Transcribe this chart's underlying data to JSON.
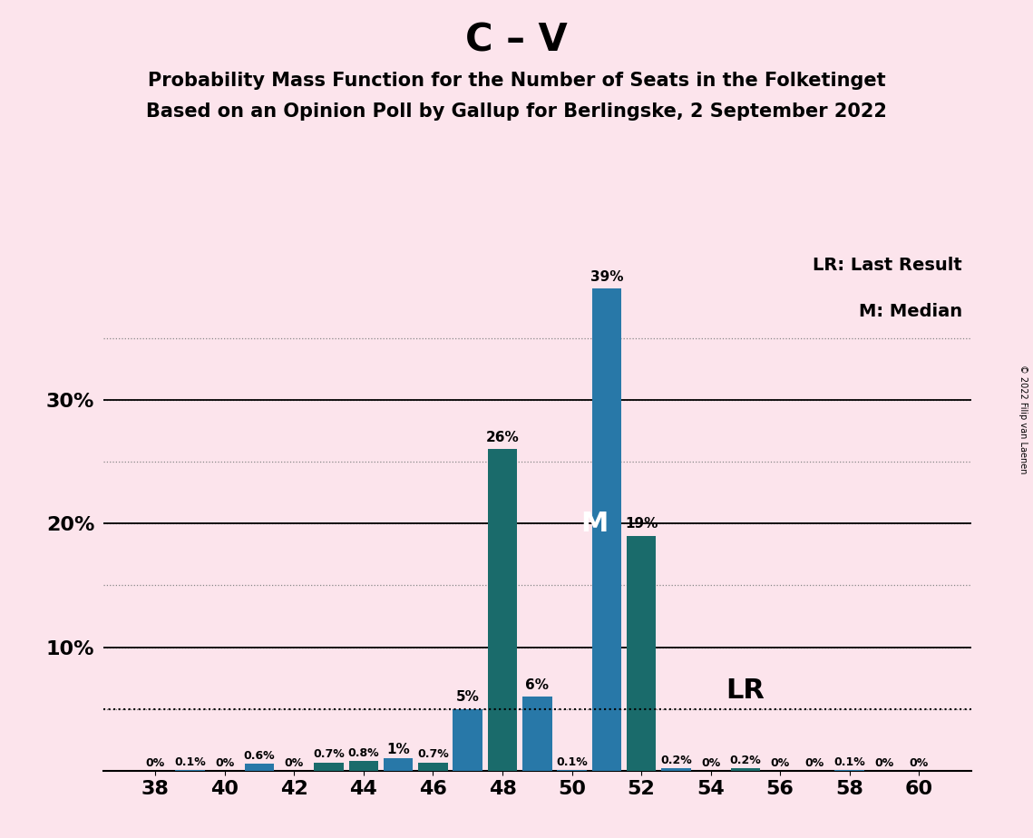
{
  "title": "C – V",
  "subtitle1": "Probability Mass Function for the Number of Seats in the Folketinget",
  "subtitle2": "Based on an Opinion Poll by Gallup for Berlingske, 2 September 2022",
  "copyright": "© 2022 Filip van Laenen",
  "lr_label": "LR: Last Result",
  "median_label": "M: Median",
  "background_color": "#fce4ec",
  "seats": [
    38,
    39,
    40,
    41,
    42,
    43,
    44,
    45,
    46,
    47,
    48,
    49,
    50,
    51,
    52,
    53,
    54,
    55,
    56,
    57,
    58,
    59,
    60
  ],
  "values": [
    0.0,
    0.1,
    0.0,
    0.6,
    0.0,
    0.7,
    0.8,
    1.0,
    0.7,
    5.0,
    26.0,
    6.0,
    0.1,
    39.0,
    19.0,
    0.2,
    0.0,
    0.2,
    0.0,
    0.0,
    0.1,
    0.0,
    0.0
  ],
  "colors": [
    "#2878a8",
    "#2878a8",
    "#2878a8",
    "#2878a8",
    "#2878a8",
    "#1a6b6b",
    "#1a6b6b",
    "#2878a8",
    "#1a6b6b",
    "#2878a8",
    "#1a6b6b",
    "#2878a8",
    "#2878a8",
    "#2878a8",
    "#1a6b6b",
    "#2878a8",
    "#2878a8",
    "#1a6b6b",
    "#2878a8",
    "#2878a8",
    "#2878a8",
    "#2878a8",
    "#2878a8"
  ],
  "last_result_seat": 51,
  "median_seat": 51,
  "last_result_value": 5.0,
  "lr_text_seat": 55,
  "ylim_max": 42,
  "xticks": [
    38,
    40,
    42,
    44,
    46,
    48,
    50,
    52,
    54,
    56,
    58,
    60
  ],
  "ytick_positions": [
    10,
    20,
    30
  ],
  "ytick_labels": [
    "10%",
    "20%",
    "30%"
  ],
  "dotted_lines": [
    5,
    10,
    15,
    20,
    25,
    30,
    35
  ],
  "solid_lines": [
    10,
    20,
    30
  ],
  "title_fontsize": 30,
  "subtitle_fontsize": 15,
  "bar_label_fontsize_small": 9,
  "bar_label_fontsize_large": 11,
  "axis_fontsize": 16,
  "legend_fontsize": 14,
  "median_label_fontsize": 22,
  "lr_text_fontsize": 22,
  "bar_width": 0.85,
  "xlim_left": 36.5,
  "xlim_right": 61.5
}
